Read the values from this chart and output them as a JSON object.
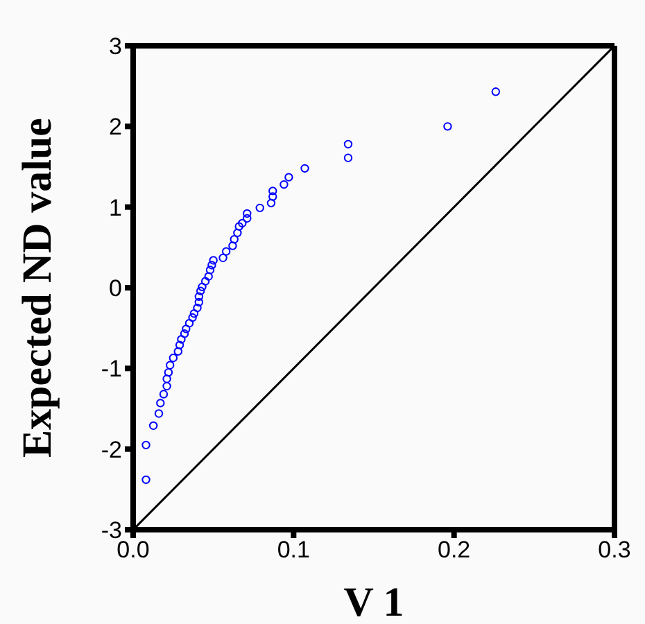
{
  "chart_data": {
    "type": "scatter",
    "xlabel": "V 1",
    "ylabel": "Expected ND value",
    "xlim": [
      0,
      0.3
    ],
    "ylim": [
      -3,
      3
    ],
    "xticks": [
      {
        "value": 0,
        "label": "0.0"
      },
      0.1,
      0.2,
      0.3
    ],
    "yticks": [
      -3,
      -2,
      -1,
      0,
      1,
      2,
      3
    ],
    "series": [
      {
        "marker": "circle",
        "color": "#0000ff",
        "x": [
          0.008,
          0.008,
          0.0126,
          0.016,
          0.017,
          0.019,
          0.021,
          0.021,
          0.022,
          0.023,
          0.025,
          0.028,
          0.029,
          0.03,
          0.032,
          0.033,
          0.035,
          0.037,
          0.038,
          0.04,
          0.041,
          0.041,
          0.042,
          0.043,
          0.045,
          0.047,
          0.048,
          0.049,
          0.05,
          0.056,
          0.058,
          0.062,
          0.063,
          0.065,
          0.066,
          0.068,
          0.071,
          0.071,
          0.079,
          0.086,
          0.087,
          0.087,
          0.094,
          0.097,
          0.107,
          0.134,
          0.134,
          0.196,
          0.226
        ],
        "values": [
          -2.38,
          -1.95,
          -1.71,
          -1.56,
          -1.43,
          -1.32,
          -1.22,
          -1.13,
          -1.05,
          -0.96,
          -0.87,
          -0.79,
          -0.71,
          -0.64,
          -0.57,
          -0.51,
          -0.44,
          -0.37,
          -0.32,
          -0.25,
          -0.18,
          -0.11,
          -0.04,
          0.01,
          0.08,
          0.14,
          0.22,
          0.28,
          0.34,
          0.37,
          0.45,
          0.52,
          0.6,
          0.68,
          0.76,
          0.8,
          0.86,
          0.92,
          0.99,
          1.05,
          1.13,
          1.2,
          1.28,
          1.37,
          1.48,
          1.61,
          1.78,
          2.0,
          2.43
        ]
      },
      {
        "type": "line",
        "marker": "none",
        "color": "#000000",
        "x": [
          0,
          0.3
        ],
        "values": [
          -3,
          3
        ]
      }
    ]
  }
}
